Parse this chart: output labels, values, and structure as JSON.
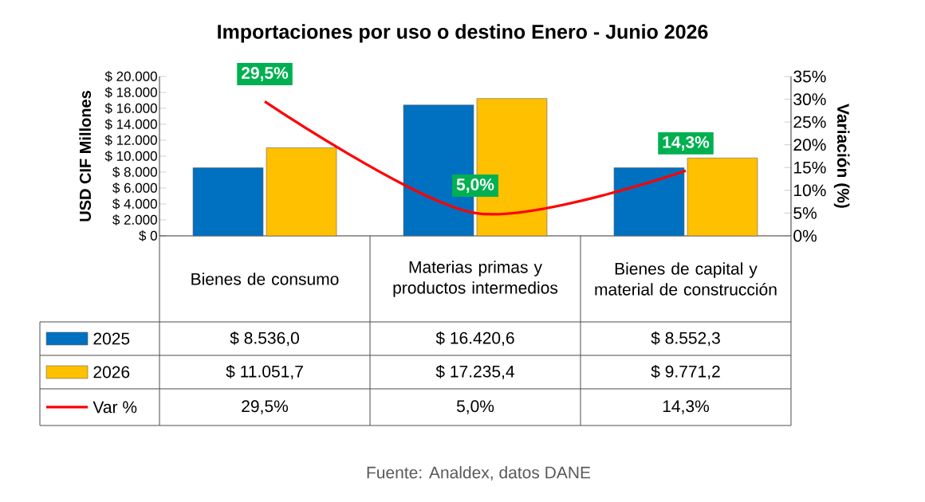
{
  "chart_data": {
    "type": "bar",
    "title": "Importaciones por uso o destino  Enero -  Junio 2026",
    "ylabel": "USD CIF Millones",
    "y2label": "Variación (%)",
    "categories": [
      "Bienes de consumo",
      "Materias primas y productos intermedios",
      "Bienes de capital y material de construcción"
    ],
    "series": [
      {
        "name": "2025",
        "color": "#0070c0",
        "values": [
          8536.0,
          16420.6,
          8552.3
        ],
        "value_labels": [
          "$ 8.536,0",
          "$ 16.420,6",
          "$ 8.552,3"
        ]
      },
      {
        "name": "2026",
        "color": "#ffc000",
        "values": [
          11051.7,
          17235.4,
          9771.2
        ],
        "value_labels": [
          "$ 11.051,7",
          "$ 17.235,4",
          "$ 9.771,2"
        ]
      },
      {
        "name": "Var %",
        "type": "line",
        "axis": "y2",
        "color": "#ff0000",
        "line_style": "solid",
        "values": [
          29.5,
          5.0,
          14.3
        ],
        "value_labels": [
          "29,5%",
          "5,0%",
          "14,3%"
        ]
      }
    ],
    "ylim": [
      0,
      20000
    ],
    "yticks": [
      {
        "value": 0,
        "label": "$ 0"
      },
      {
        "value": 2000,
        "label": "$ 2.000"
      },
      {
        "value": 4000,
        "label": "$ 4.000"
      },
      {
        "value": 6000,
        "label": "$ 6.000"
      },
      {
        "value": 8000,
        "label": "$ 8.000"
      },
      {
        "value": 10000,
        "label": "$ 10.000"
      },
      {
        "value": 12000,
        "label": "$ 12.000"
      },
      {
        "value": 14000,
        "label": "$ 14.000"
      },
      {
        "value": 16000,
        "label": "$ 16.000"
      },
      {
        "value": 18000,
        "label": "$ 18.000"
      },
      {
        "value": 20000,
        "label": "$ 20.000"
      }
    ],
    "y2lim": [
      0,
      35
    ],
    "y2ticks": [
      {
        "value": 0,
        "label": "0%"
      },
      {
        "value": 5,
        "label": "5%"
      },
      {
        "value": 10,
        "label": "10%"
      },
      {
        "value": 15,
        "label": "15%"
      },
      {
        "value": 20,
        "label": "20%"
      },
      {
        "value": 25,
        "label": "25%"
      },
      {
        "value": 30,
        "label": "30%"
      },
      {
        "value": 35,
        "label": "35%"
      }
    ],
    "legend": "bottom left",
    "annotations": [
      "Fuente: Analdex, datos DANE"
    ]
  }
}
